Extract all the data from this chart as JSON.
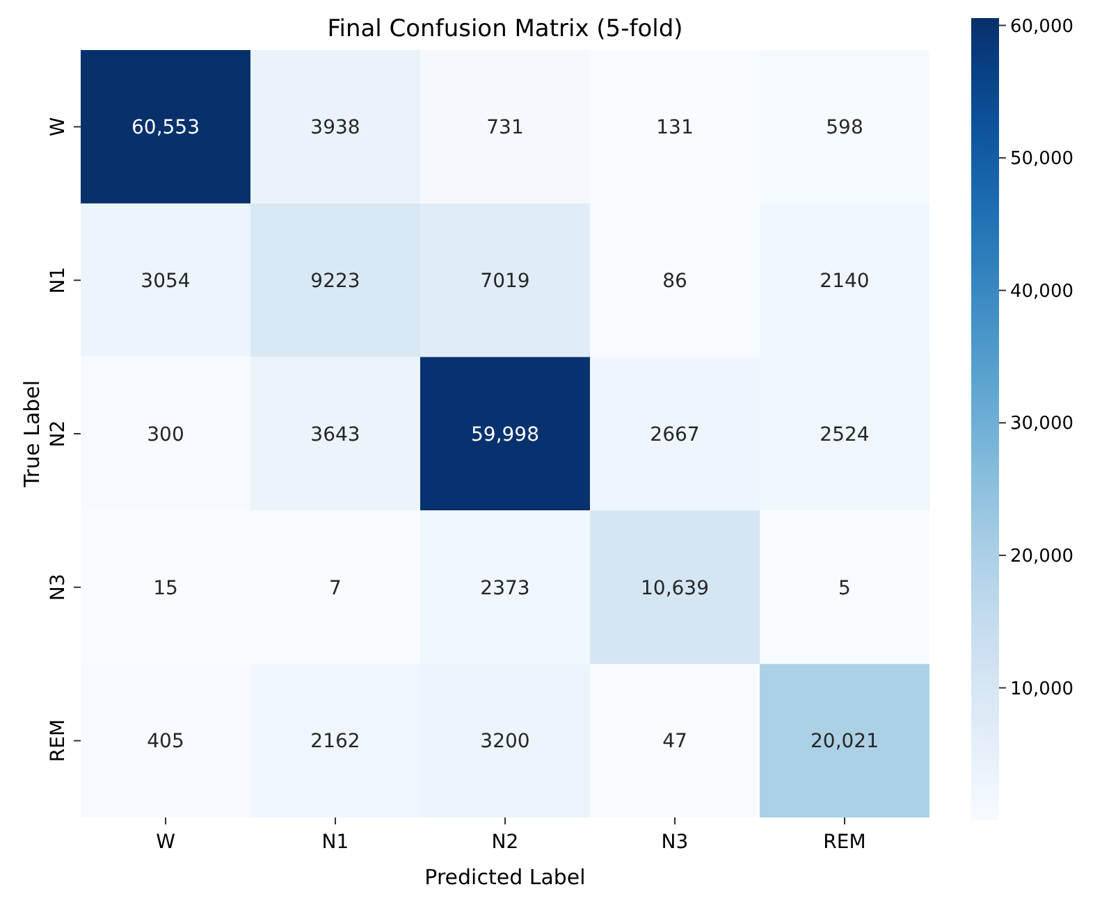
{
  "chart_data": {
    "type": "heatmap",
    "title": "Final Confusion Matrix (5-fold)",
    "xlabel": "Predicted Label",
    "ylabel": "True Label",
    "clabel": null,
    "categories": [
      "W",
      "N1",
      "N2",
      "N3",
      "REM"
    ],
    "y_categories": [
      "W",
      "N1",
      "N2",
      "N3",
      "REM"
    ],
    "cells": [
      [
        60553,
        3938,
        731,
        131,
        598
      ],
      [
        3054,
        9223,
        7019,
        86,
        2140
      ],
      [
        300,
        3643,
        59998,
        2667,
        2524
      ],
      [
        15,
        7,
        2373,
        10639,
        5
      ],
      [
        405,
        2162,
        3200,
        47,
        20021
      ]
    ],
    "cell_labels": [
      [
        "60,553",
        "3938",
        "731",
        "131",
        "598"
      ],
      [
        "3054",
        "9223",
        "7019",
        "86",
        "2140"
      ],
      [
        "300",
        "3643",
        "59,998",
        "2667",
        "2524"
      ],
      [
        "15",
        "7",
        "2373",
        "10,639",
        "5"
      ],
      [
        "405",
        "2162",
        "3200",
        "47",
        "20,021"
      ]
    ],
    "clim": [
      5,
      60553
    ],
    "cticks": [
      {
        "value": 10000,
        "label": "10,000"
      },
      {
        "value": 20000,
        "label": "20,000"
      },
      {
        "value": 30000,
        "label": "30,000"
      },
      {
        "value": 40000,
        "label": "40,000"
      },
      {
        "value": 50000,
        "label": "50,000"
      },
      {
        "value": 60000,
        "label": "60,000"
      }
    ]
  }
}
